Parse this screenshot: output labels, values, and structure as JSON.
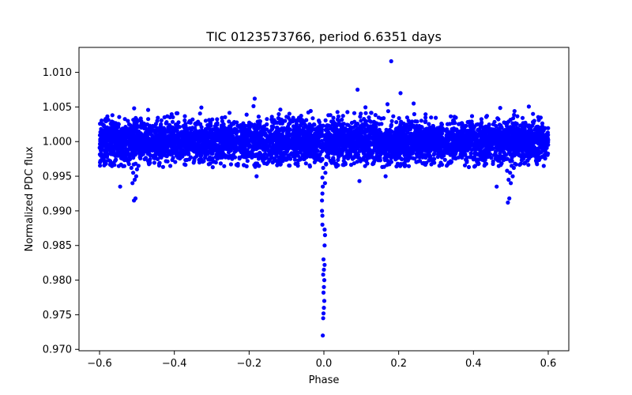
{
  "chart_data": {
    "type": "scatter",
    "title": "TIC 0123573766, period 6.6351 days",
    "xlabel": "Phase",
    "ylabel": "Normalized PDC flux",
    "xlim": [
      -0.655,
      0.655
    ],
    "ylim": [
      0.9698,
      1.0136
    ],
    "xticks": [
      {
        "value": -0.6,
        "label": "−0.6"
      },
      {
        "value": -0.4,
        "label": "−0.4"
      },
      {
        "value": -0.2,
        "label": "−0.2"
      },
      {
        "value": 0.0,
        "label": "0.0"
      },
      {
        "value": 0.2,
        "label": "0.2"
      },
      {
        "value": 0.4,
        "label": "0.4"
      },
      {
        "value": 0.6,
        "label": "0.6"
      }
    ],
    "yticks": [
      {
        "value": 0.97,
        "label": "0.970"
      },
      {
        "value": 0.975,
        "label": "0.975"
      },
      {
        "value": 0.98,
        "label": "0.980"
      },
      {
        "value": 0.985,
        "label": "0.985"
      },
      {
        "value": 0.99,
        "label": "0.990"
      },
      {
        "value": 0.995,
        "label": "0.995"
      },
      {
        "value": 1.0,
        "label": "1.000"
      },
      {
        "value": 1.005,
        "label": "1.005"
      },
      {
        "value": 1.01,
        "label": "1.010"
      }
    ],
    "grid": false,
    "marker_color": "#0000ff",
    "series": [
      {
        "x_range": [
          -0.6,
          0.6
        ],
        "baseline_flux": 1.0,
        "scatter_sigma": 0.0018,
        "points": [
          {
            "x": -0.003,
            "y": 0.972
          },
          {
            "x": -0.002,
            "y": 0.9745
          },
          {
            "x": -0.001,
            "y": 0.9752
          },
          {
            "x": 0.0,
            "y": 0.976
          },
          {
            "x": 0.001,
            "y": 0.977
          },
          {
            "x": -0.001,
            "y": 0.9782
          },
          {
            "x": 0.0,
            "y": 0.979
          },
          {
            "x": 0.001,
            "y": 0.98
          },
          {
            "x": -0.002,
            "y": 0.9808
          },
          {
            "x": 0.0,
            "y": 0.9815
          },
          {
            "x": 0.002,
            "y": 0.9822
          },
          {
            "x": -0.001,
            "y": 0.983
          },
          {
            "x": 0.002,
            "y": 0.985
          },
          {
            "x": 0.003,
            "y": 0.9865
          },
          {
            "x": 0.002,
            "y": 0.9873
          },
          {
            "x": -0.004,
            "y": 0.988
          },
          {
            "x": -0.004,
            "y": 0.9893
          },
          {
            "x": -0.005,
            "y": 0.99
          },
          {
            "x": -0.005,
            "y": 0.9915
          },
          {
            "x": -0.004,
            "y": 0.9925
          },
          {
            "x": -0.003,
            "y": 0.9935
          },
          {
            "x": 0.003,
            "y": 0.994
          },
          {
            "x": -0.004,
            "y": 0.9948
          },
          {
            "x": 0.004,
            "y": 0.9955
          },
          {
            "x": -0.002,
            "y": 0.9962
          },
          {
            "x": 0.006,
            "y": 0.9968
          },
          {
            "x": -0.008,
            "y": 0.9972
          },
          {
            "x": -0.508,
            "y": 0.9915
          },
          {
            "x": -0.504,
            "y": 0.9918
          },
          {
            "x": -0.512,
            "y": 0.994
          },
          {
            "x": -0.506,
            "y": 0.9945
          },
          {
            "x": -0.502,
            "y": 0.995
          },
          {
            "x": -0.51,
            "y": 0.9955
          },
          {
            "x": -0.5,
            "y": 0.996
          },
          {
            "x": -0.515,
            "y": 0.9962
          },
          {
            "x": -0.496,
            "y": 0.9965
          },
          {
            "x": 0.492,
            "y": 0.9912
          },
          {
            "x": 0.496,
            "y": 0.9918
          },
          {
            "x": 0.5,
            "y": 0.994
          },
          {
            "x": 0.494,
            "y": 0.9945
          },
          {
            "x": 0.505,
            "y": 0.995
          },
          {
            "x": 0.498,
            "y": 0.9955
          },
          {
            "x": 0.49,
            "y": 0.9958
          },
          {
            "x": 0.508,
            "y": 0.9962
          },
          {
            "x": 0.502,
            "y": 0.9965
          },
          {
            "x": 0.18,
            "y": 1.0116
          },
          {
            "x": 0.09,
            "y": 1.0075
          },
          {
            "x": 0.205,
            "y": 1.007
          },
          {
            "x": -0.185,
            "y": 1.0062
          },
          {
            "x": 0.24,
            "y": 1.0055
          },
          {
            "x": 0.17,
            "y": 1.0054
          },
          {
            "x": -0.545,
            "y": 0.9935
          },
          {
            "x": 0.462,
            "y": 0.9935
          },
          {
            "x": 0.095,
            "y": 0.9943
          },
          {
            "x": 0.165,
            "y": 0.995
          },
          {
            "x": -0.18,
            "y": 0.995
          }
        ]
      }
    ]
  }
}
